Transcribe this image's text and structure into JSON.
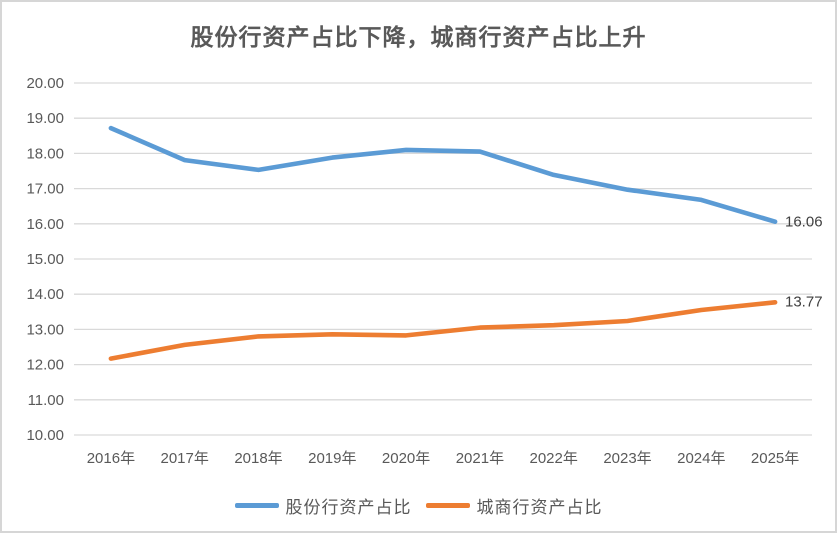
{
  "title": "股份行资产占比下降，城商行资产占比上升",
  "chart_data": {
    "type": "line",
    "title": "股份行资产占比下降，城商行资产占比上升",
    "categories": [
      "2016年",
      "2017年",
      "2018年",
      "2019年",
      "2020年",
      "2021年",
      "2022年",
      "2023年",
      "2024年",
      "2025年"
    ],
    "series": [
      {
        "name": "股份行资产占比",
        "color": "#5B9BD5",
        "values": [
          18.72,
          17.81,
          17.53,
          17.88,
          18.1,
          18.05,
          17.39,
          16.97,
          16.68,
          16.06
        ],
        "end_label": "16.06"
      },
      {
        "name": "城商行资产占比",
        "color": "#ED7D31",
        "values": [
          12.17,
          12.56,
          12.8,
          12.86,
          12.83,
          13.05,
          13.12,
          13.24,
          13.55,
          13.77
        ],
        "end_label": "13.77"
      }
    ],
    "ylim": [
      10,
      20
    ],
    "y_ticks": [
      "20.00",
      "19.00",
      "18.00",
      "17.00",
      "16.00",
      "15.00",
      "14.00",
      "13.00",
      "12.00",
      "11.00",
      "10.00"
    ],
    "xlabel": "",
    "ylabel": "",
    "grid": true,
    "gridline_color": "#D9D9D9",
    "legend_position": "bottom"
  }
}
